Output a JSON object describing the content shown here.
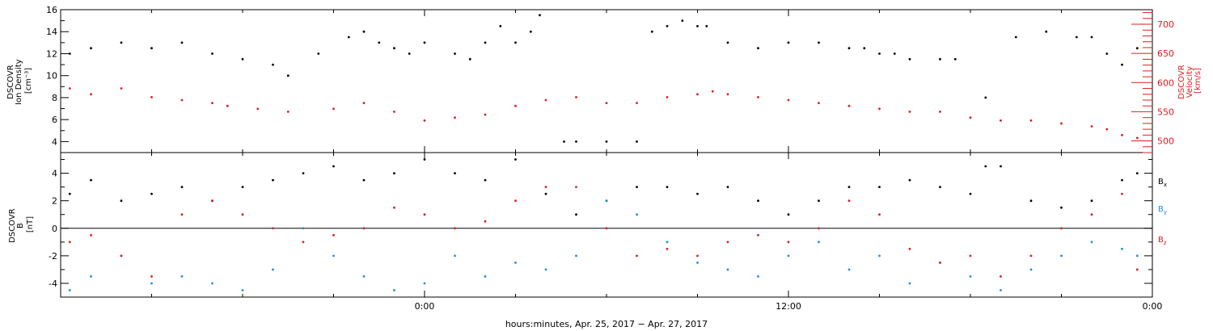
{
  "colors": {
    "black": "#000000",
    "red": "#e41a1c",
    "blue": "#1a8fdc"
  },
  "chart_data": [
    {
      "type": "scatter",
      "panel": "plasma",
      "ylabel_left": [
        "DSCOVR",
        "Ion Density",
        "[cm⁻³]"
      ],
      "ylabel_right": [
        "DSCOVR",
        "Velocity",
        "[km/s]"
      ],
      "ylim_left": [
        3,
        16
      ],
      "yticks_left": [
        4,
        6,
        8,
        10,
        12,
        14,
        16
      ],
      "ylim_right": [
        480,
        725
      ],
      "yticks_right": [
        500,
        550,
        600,
        650,
        700
      ],
      "series": [
        {
          "axis": "left",
          "color": "black",
          "x": [
            -11.7,
            -11,
            -10,
            -9,
            -8,
            -7,
            -6,
            -5,
            -4.5,
            -3.5,
            -2.5,
            -2,
            -1.5,
            -1,
            -0.5,
            0,
            1,
            1.5,
            2,
            2.5,
            3,
            3.5,
            3.8,
            4.6,
            5,
            6,
            7,
            7.5,
            8,
            8.5,
            9,
            9.3,
            10,
            11,
            12,
            13,
            14,
            14.5,
            15,
            15.5,
            16,
            17,
            17.5,
            18.5,
            19.5,
            20.5,
            21.5,
            22,
            22.5,
            23,
            23.5
          ],
          "y": [
            12,
            12.5,
            13,
            12.5,
            13,
            12,
            11.5,
            11,
            10,
            12,
            13.5,
            14,
            13,
            12.5,
            12,
            13,
            12,
            11.5,
            13,
            14.5,
            13,
            14,
            15.5,
            4,
            4,
            4,
            4,
            14,
            14.5,
            15,
            14.5,
            14.5,
            13,
            12.5,
            13,
            13,
            12.5,
            12.5,
            12,
            12,
            11.5,
            11.5,
            11.5,
            8,
            13.5,
            14,
            13.5,
            13.5,
            12,
            11,
            12.5
          ]
        },
        {
          "axis": "right",
          "color": "red",
          "x": [
            -11.7,
            -11,
            -10,
            -9,
            -8,
            -7,
            -6.5,
            -5.5,
            -4.5,
            -3,
            -2,
            -1,
            0,
            1,
            2,
            3,
            4,
            5,
            6,
            7,
            8,
            9,
            9.5,
            10,
            11,
            12,
            13,
            14,
            15,
            16,
            17,
            18,
            19,
            20,
            21,
            22,
            22.5,
            23,
            23.5
          ],
          "y": [
            590,
            580,
            590,
            575,
            570,
            565,
            560,
            555,
            550,
            555,
            565,
            550,
            535,
            540,
            545,
            560,
            570,
            575,
            565,
            565,
            575,
            580,
            585,
            580,
            575,
            570,
            565,
            560,
            555,
            550,
            550,
            540,
            535,
            535,
            530,
            525,
            520,
            510,
            505
          ]
        }
      ]
    },
    {
      "type": "scatter",
      "panel": "magnetic",
      "ylabel_left": [
        "DSCOVR",
        "B",
        "[nT]"
      ],
      "ylim": [
        -5,
        5.5
      ],
      "yticks": [
        -4,
        -2,
        0,
        2,
        4
      ],
      "zero_line": true,
      "legend": [
        "Bx",
        "By",
        "Bz"
      ],
      "legend_placement": "right",
      "series": [
        {
          "name": "Bx",
          "color": "black",
          "x": [
            -11.7,
            -11,
            -10,
            -9,
            -8,
            -7,
            -6,
            -5,
            -4,
            -3,
            -2,
            -1,
            0,
            1,
            2,
            3,
            4,
            5,
            6,
            7,
            8,
            9,
            10,
            11,
            12,
            13,
            14,
            15,
            16,
            17,
            18,
            18.5,
            19,
            20,
            21,
            22,
            23,
            23.5
          ],
          "y": [
            2.5,
            3.5,
            2,
            2.5,
            3,
            2,
            3,
            3.5,
            4,
            4.5,
            3.5,
            4,
            5,
            4,
            3.5,
            5,
            2.5,
            1,
            2,
            3,
            3,
            2.5,
            3,
            2,
            1,
            2,
            3,
            3,
            3.5,
            3,
            2.5,
            4.5,
            4.5,
            2,
            1.5,
            2,
            3.5,
            4
          ]
        },
        {
          "name": "By",
          "color": "blue",
          "x": [
            -11.7,
            -11,
            -10,
            -9,
            -8,
            -7,
            -6,
            -5,
            -4,
            -3,
            -2,
            -1,
            0,
            1,
            2,
            3,
            4,
            5,
            6,
            7,
            8,
            9,
            10,
            11,
            12,
            13,
            14,
            15,
            16,
            17,
            18,
            19,
            20,
            21,
            22,
            23,
            23.5
          ],
          "y": [
            -4.5,
            -3.5,
            -2,
            -4,
            -3.5,
            -4,
            -4.5,
            -3,
            0,
            -2,
            -3.5,
            -4.5,
            -4,
            -2,
            -3.5,
            -2.5,
            -3,
            -2,
            2,
            1,
            -1,
            -2.5,
            -3,
            -3.5,
            -2,
            -1,
            -3,
            -2,
            -4,
            -2.5,
            -3.5,
            -4.5,
            -3,
            -2,
            -1,
            -1.5,
            -2
          ]
        },
        {
          "name": "Bz",
          "color": "red",
          "x": [
            -11.7,
            -11,
            -10,
            -9,
            -8,
            -7,
            -6,
            -5,
            -4,
            -3,
            -2,
            -1,
            0,
            1,
            2,
            3,
            4,
            5,
            6,
            7,
            8,
            9,
            10,
            11,
            12,
            13,
            14,
            15,
            16,
            17,
            18,
            19,
            20,
            21,
            22,
            23,
            23.5
          ],
          "y": [
            -1,
            -0.5,
            -2,
            -3.5,
            1,
            2,
            1,
            0,
            -1,
            -0.5,
            0,
            1.5,
            1,
            0,
            0.5,
            2,
            3,
            3,
            0,
            -2,
            -1.5,
            -2,
            -1,
            -0.5,
            -1,
            0,
            2,
            1,
            -1.5,
            -2.5,
            -2,
            -3.5,
            -2,
            0,
            1,
            2.5,
            -3
          ]
        }
      ]
    }
  ],
  "x_axis": {
    "xlim_hours": [
      -12,
      24
    ],
    "tick_labels": [
      {
        "hour": 0,
        "label": "0:00"
      },
      {
        "hour": 12,
        "label": "12:00"
      },
      {
        "hour": 24,
        "label": "0:00"
      }
    ],
    "xlabel": "hours:minutes, Apr. 25, 2017 − Apr. 27, 2017"
  }
}
